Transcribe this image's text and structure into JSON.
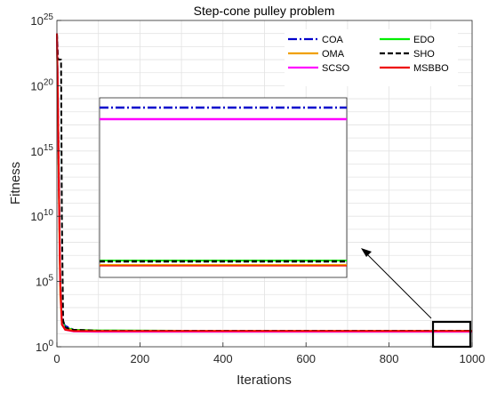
{
  "chart_data": {
    "type": "line",
    "title": "Step-cone pulley problem",
    "xlabel": "Iterations",
    "ylabel": "Fitness",
    "xlim": [
      0,
      1000
    ],
    "ylim": [
      1,
      1e+25
    ],
    "yscale": "log",
    "grid": true,
    "legend_position": "top-right",
    "x_ticks": [
      "0",
      "200",
      "400",
      "600",
      "800",
      "1000"
    ],
    "y_ticks": [
      {
        "base": "10",
        "exp": "0"
      },
      {
        "base": "10",
        "exp": "5"
      },
      {
        "base": "10",
        "exp": "10"
      },
      {
        "base": "10",
        "exp": "15"
      },
      {
        "base": "10",
        "exp": "20"
      },
      {
        "base": "10",
        "exp": "25"
      }
    ],
    "series": [
      {
        "name": "COA",
        "color": "#0000cc",
        "dash": "dashdot",
        "x": [
          0,
          2,
          5,
          8,
          12,
          20,
          40,
          100,
          300,
          600,
          1000
        ],
        "y": [
          1e+24,
          1e+20,
          1000000000000.0,
          100000.0,
          100,
          40,
          20,
          17,
          17,
          17,
          17
        ]
      },
      {
        "name": "EDO",
        "color": "#00ee00",
        "dash": "solid",
        "x": [
          0,
          2,
          5,
          8,
          12,
          20,
          40,
          100,
          300,
          600,
          1000
        ],
        "y": [
          1e+24,
          1e+20,
          1000000000000.0,
          100000.0,
          100,
          30,
          20,
          18,
          17,
          17,
          17
        ]
      },
      {
        "name": "OMA",
        "color": "#f0a000",
        "dash": "solid",
        "x": [
          0,
          2,
          5,
          8,
          12,
          20,
          40,
          100,
          300,
          600,
          1000
        ],
        "y": [
          1e+24,
          1e+19,
          100000000000.0,
          10000.0,
          60,
          25,
          18,
          17,
          17,
          17,
          17
        ]
      },
      {
        "name": "SHO",
        "color": "#000000",
        "dash": "dashed",
        "x": [
          0,
          3,
          5,
          7,
          9,
          10,
          12,
          15,
          20,
          40,
          100,
          1000
        ],
        "y": [
          1e+24,
          1e+22,
          1e+22,
          1e+22,
          1e+22,
          1e+22,
          10000000000.0,
          100,
          30,
          20,
          17,
          17
        ]
      },
      {
        "name": "SCSO",
        "color": "#ff00ff",
        "dash": "solid",
        "x": [
          0,
          2,
          5,
          8,
          12,
          20,
          40,
          100,
          300,
          600,
          1000
        ],
        "y": [
          1e+24,
          1e+20,
          1000000000000.0,
          100000.0,
          60,
          20,
          15,
          14,
          14,
          14,
          14
        ]
      },
      {
        "name": "MSBBO",
        "color": "#ee0000",
        "dash": "solid",
        "x": [
          0,
          2,
          5,
          8,
          12,
          20,
          40,
          100,
          300,
          600,
          1000
        ],
        "y": [
          1e+24,
          1e+20,
          1000000000000.0,
          100000.0,
          50,
          20,
          16,
          16,
          16,
          16,
          16
        ]
      }
    ]
  }
}
